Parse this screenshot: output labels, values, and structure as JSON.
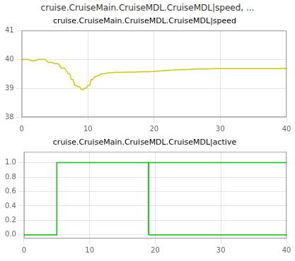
{
  "title": "cruise.CruiseMain.CruiseMDL.CruiseMDL|speed, ...",
  "chart_data": [
    {
      "type": "line",
      "title": "cruise.CruiseMain.CruiseMDL.CruiseMDL|speed",
      "x": [
        0,
        0.5,
        1.0,
        1.5,
        2.0,
        2.5,
        3.0,
        3.5,
        4.0,
        4.5,
        5.0,
        5.5,
        6.0,
        6.5,
        7.0,
        7.25,
        7.5,
        7.75,
        8.0,
        8.25,
        8.5,
        8.75,
        9.0,
        9.25,
        9.5,
        9.75,
        10.0,
        10.25,
        10.5,
        10.75,
        11.0,
        11.25,
        11.5,
        11.75,
        12.0,
        12.5,
        13.0,
        13.5,
        14.0,
        15.0,
        16.0,
        17.0,
        18.0,
        19.0,
        20.0,
        21.0,
        22.0,
        23.0,
        24.0,
        25.0,
        26.0,
        27.0,
        28.0,
        29.0,
        30.0,
        31.0,
        40.0
      ],
      "values": [
        40.0,
        40.0,
        40.0,
        39.95,
        39.95,
        40.0,
        40.0,
        40.0,
        39.9,
        39.9,
        39.85,
        39.85,
        39.7,
        39.7,
        39.5,
        39.5,
        39.3,
        39.3,
        39.1,
        39.1,
        39.05,
        39.05,
        38.95,
        38.95,
        39.0,
        39.0,
        39.1,
        39.1,
        39.3,
        39.3,
        39.4,
        39.4,
        39.45,
        39.45,
        39.5,
        39.5,
        39.53,
        39.53,
        39.55,
        39.55,
        39.56,
        39.56,
        39.57,
        39.57,
        39.58,
        39.6,
        39.62,
        39.63,
        39.64,
        39.65,
        39.66,
        39.67,
        39.67,
        39.68,
        39.68,
        39.68,
        39.68
      ],
      "color": "#cccc00",
      "xlim": [
        0,
        40
      ],
      "xticks": [
        0,
        10,
        20,
        30,
        40
      ],
      "ylim": [
        38,
        41
      ],
      "yticks": [
        38,
        39,
        40,
        41
      ],
      "grid": true
    },
    {
      "type": "line",
      "title": "cruise.CruiseMain.CruiseMDL.CruiseMDL|active",
      "series": [
        {
          "type": "step",
          "color": "#00cc00",
          "x": [
            0,
            5,
            5,
            19,
            19,
            40
          ],
          "values": [
            0,
            0,
            1,
            1,
            0,
            0
          ]
        },
        {
          "type": "line",
          "color": "#00cc00",
          "x": [
            19.0,
            19.0,
            40
          ],
          "values": [
            0.0,
            1.0,
            1.0
          ]
        }
      ],
      "xlim": [
        0,
        40
      ],
      "xticks": [
        0,
        10,
        20,
        30,
        40
      ],
      "ylim": [
        -0.05,
        1.15
      ],
      "yticks": [
        {
          "value": 0.0,
          "label": "0.0"
        },
        0.2,
        0.4,
        0.6,
        0.8,
        {
          "value": 1.0,
          "label": "1.0"
        }
      ],
      "grid": true
    }
  ]
}
